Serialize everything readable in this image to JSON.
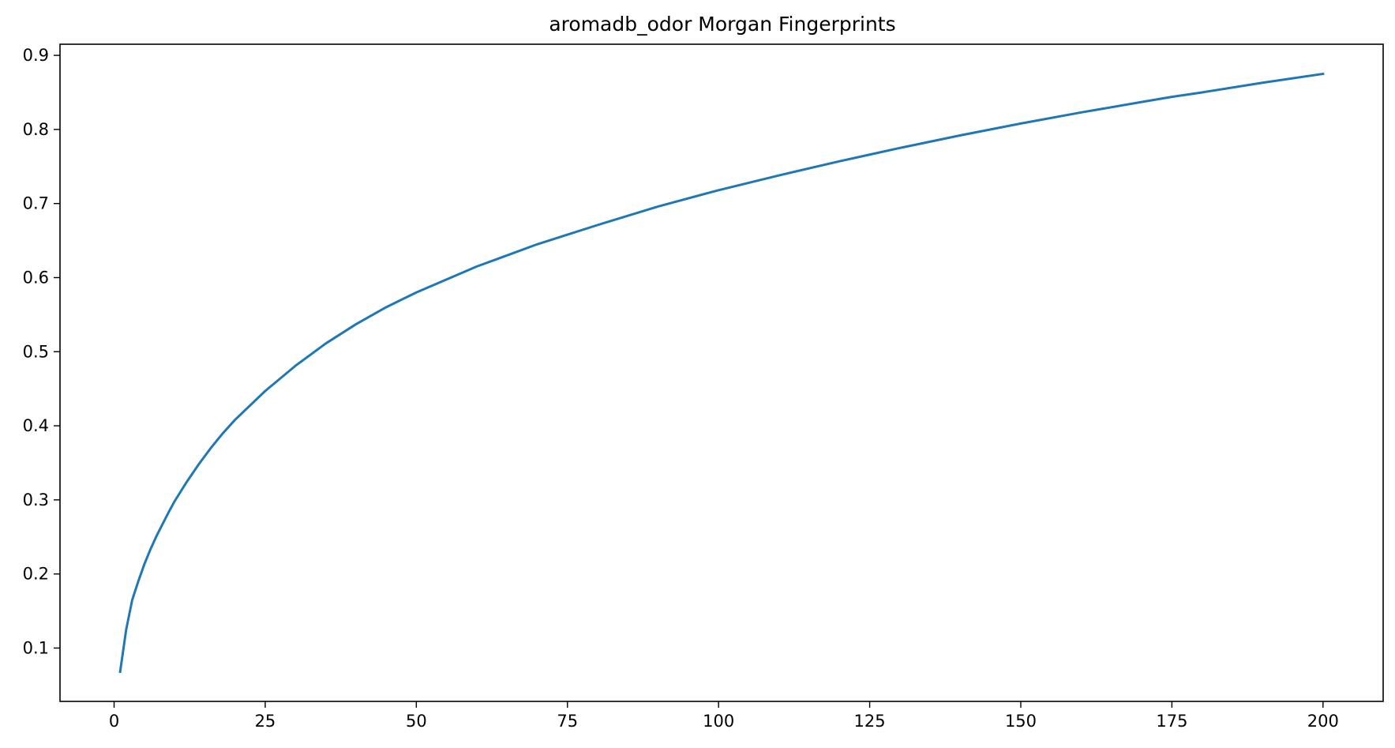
{
  "chart_data": {
    "type": "line",
    "title": "aromadb_odor Morgan Fingerprints",
    "xlabel": "",
    "ylabel": "",
    "xlim": [
      -8.95,
      209.95
    ],
    "ylim": [
      0.028,
      0.915
    ],
    "x_ticks": [
      0,
      25,
      50,
      75,
      100,
      125,
      150,
      175,
      200
    ],
    "y_ticks": [
      0.1,
      0.2,
      0.3,
      0.4,
      0.5,
      0.6,
      0.7,
      0.8,
      0.9
    ],
    "grid": false,
    "legend": "none",
    "series": [
      {
        "color": "#1f77b4",
        "x": [
          1,
          2,
          3,
          4,
          5,
          6,
          7,
          8,
          9,
          10,
          12,
          14,
          16,
          18,
          20,
          25,
          30,
          35,
          40,
          45,
          50,
          60,
          70,
          75,
          80,
          90,
          100,
          110,
          120,
          125,
          130,
          140,
          150,
          160,
          170,
          175,
          180,
          190,
          200
        ],
        "y": [
          0.068,
          0.125,
          0.165,
          0.19,
          0.213,
          0.233,
          0.251,
          0.267,
          0.283,
          0.298,
          0.324,
          0.348,
          0.37,
          0.39,
          0.408,
          0.447,
          0.481,
          0.511,
          0.537,
          0.56,
          0.58,
          0.615,
          0.645,
          0.658,
          0.671,
          0.696,
          0.718,
          0.738,
          0.757,
          0.766,
          0.775,
          0.792,
          0.808,
          0.823,
          0.837,
          0.844,
          0.85,
          0.863,
          0.875
        ]
      }
    ]
  }
}
